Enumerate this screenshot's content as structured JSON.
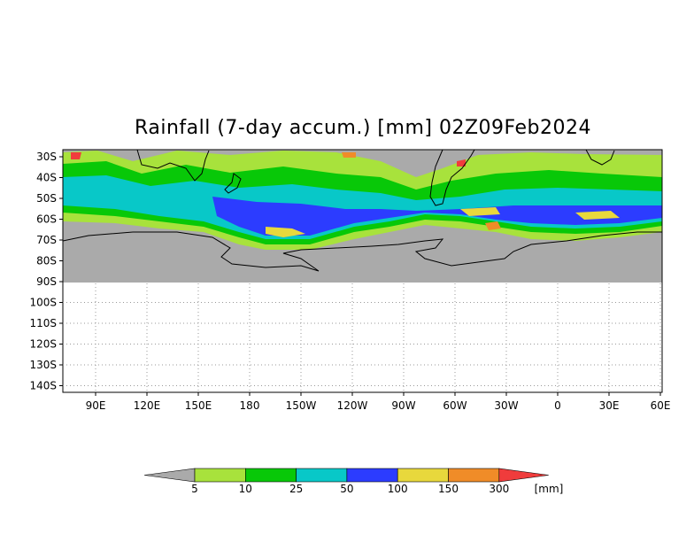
{
  "title": "Rainfall (7-day accum.) [mm] 02Z09Feb2024",
  "y_ticks": [
    "30S",
    "40S",
    "50S",
    "60S",
    "70S",
    "80S",
    "90S",
    "100S",
    "110S",
    "120S",
    "130S",
    "140S"
  ],
  "x_ticks": [
    "90E",
    "120E",
    "150E",
    "180",
    "150W",
    "120W",
    "90W",
    "60W",
    "30W",
    "0",
    "30E",
    "60E"
  ],
  "colorbar": {
    "unit": "[mm]",
    "labels": [
      "5",
      "10",
      "25",
      "50",
      "100",
      "150",
      "300"
    ],
    "colors": [
      "#a8e23c",
      "#08c808",
      "#08c8c8",
      "#2c3cff",
      "#e8d83c",
      "#f08c28",
      "#f03c3c"
    ],
    "under_color": "#aaaaaa",
    "over_color": "#f03c3c"
  },
  "colors": {
    "land_no_rain": "#aaaaaa",
    "grid": "#999999"
  }
}
